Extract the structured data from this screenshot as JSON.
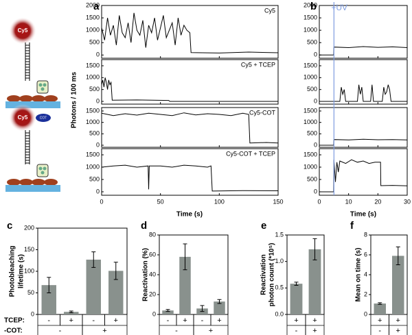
{
  "diagram": {
    "labels": [
      "Cy5",
      "Cy5",
      "COT"
    ]
  },
  "chart_data": [
    {
      "type": "trace",
      "panel_label": "a",
      "x_label": "Time (s)",
      "y_label": "Photons / 100 ms",
      "xlim": [
        0,
        150
      ],
      "xticks": [
        0,
        50,
        100,
        150
      ],
      "series": [
        {
          "name": "Cy5",
          "color": "#000000",
          "ylim": [
            -130,
            2000
          ],
          "yticks": [
            0,
            500,
            1000,
            1500,
            2000
          ],
          "x": [
            0,
            2.5,
            5,
            7.5,
            10,
            12.5,
            15,
            17.5,
            20,
            22.5,
            25,
            27.5,
            30,
            32.5,
            35,
            37.5,
            40,
            42.5,
            45,
            47.5,
            50,
            52.5,
            55,
            57.5,
            60,
            62.5,
            65,
            67.5,
            70,
            72.5,
            75,
            76,
            100,
            125,
            150
          ],
          "values": [
            1100,
            600,
            1500,
            800,
            1200,
            400,
            1600,
            900,
            700,
            1300,
            500,
            1700,
            1000,
            800,
            1400,
            300,
            1200,
            900,
            1500,
            600,
            1100,
            1600,
            700,
            1000,
            1300,
            400,
            1500,
            800,
            1200,
            1000,
            900,
            100,
            80,
            120,
            90
          ]
        },
        {
          "name": "Cy5 + TCEP",
          "color": "#000000",
          "ylim": [
            -115,
            1760
          ],
          "yticks": [
            0,
            500,
            1000,
            1500
          ],
          "x": [
            0,
            1,
            2,
            3,
            4,
            5,
            6,
            7,
            8,
            9,
            30,
            57,
            58,
            100,
            150
          ],
          "values": [
            700,
            900,
            600,
            1000,
            800,
            500,
            900,
            700,
            800,
            50,
            60,
            40,
            0,
            0,
            0
          ]
        },
        {
          "name": "Cy5-COT",
          "color": "#000000",
          "ylim": [
            -90,
            1650
          ],
          "yticks": [
            0,
            500,
            1000,
            1500
          ],
          "x": [
            0,
            10,
            20,
            30,
            40,
            50,
            60,
            70,
            80,
            90,
            100,
            110,
            120,
            125,
            126,
            140,
            150
          ],
          "values": [
            1400,
            1300,
            1380,
            1320,
            1400,
            1350,
            1300,
            1420,
            1330,
            1380,
            1350,
            1300,
            1400,
            1350,
            100,
            120,
            100
          ]
        },
        {
          "name": "Cy5-COT + TCEP",
          "color": "#000000",
          "ylim": [
            -140,
            1750
          ],
          "yticks": [
            0,
            500,
            1000,
            1500
          ],
          "x": [
            0,
            10,
            20,
            30,
            39.5,
            40,
            40.5,
            50,
            60,
            70,
            80,
            90,
            93,
            94,
            120,
            150
          ],
          "values": [
            1000,
            1050,
            1080,
            1000,
            1050,
            100,
            1050,
            1050,
            1000,
            1080,
            1050,
            1000,
            1050,
            30,
            50,
            40
          ]
        }
      ]
    },
    {
      "type": "trace",
      "panel_label": "b",
      "x_label": "Time (s)",
      "xlim": [
        0,
        30
      ],
      "xticks": [
        0,
        10,
        20,
        30
      ],
      "annotation": {
        "text": "+UV",
        "x": 5,
        "color": "#7d9be0"
      },
      "series": [
        {
          "color": "#000000",
          "ylim": [
            -130,
            2000
          ],
          "yticks": [
            0,
            500,
            1000,
            1500,
            2000
          ],
          "x": [
            0,
            4.9,
            5,
            10,
            15,
            20,
            25,
            30
          ],
          "values": [
            0,
            0,
            320,
            300,
            340,
            310,
            330,
            300
          ]
        },
        {
          "color": "#000000",
          "ylim": [
            -115,
            1760
          ],
          "yticks": [
            0,
            500,
            1000,
            1500
          ],
          "x": [
            0,
            5,
            7,
            7.5,
            8,
            8.5,
            9,
            13,
            13.5,
            14,
            14.5,
            15,
            17.5,
            18,
            18.5,
            21.5,
            22,
            22.5,
            23,
            23.5,
            24,
            24.5,
            30
          ],
          "values": [
            0,
            0,
            0,
            600,
            300,
            500,
            0,
            0,
            700,
            300,
            600,
            0,
            0,
            700,
            0,
            0,
            600,
            300,
            400,
            700,
            500,
            0,
            0
          ]
        },
        {
          "color": "#000000",
          "ylim": [
            -90,
            1650
          ],
          "yticks": [
            0,
            500,
            1000,
            1500
          ],
          "x": [
            0,
            4.9,
            5,
            10,
            15,
            20,
            25,
            30
          ],
          "values": [
            0,
            0,
            250,
            230,
            260,
            240,
            250,
            230
          ]
        },
        {
          "color": "#000000",
          "ylim": [
            -140,
            1750
          ],
          "yticks": [
            0,
            500,
            1000,
            1500
          ],
          "x": [
            0,
            4.9,
            5,
            5.5,
            6,
            6.5,
            7,
            9,
            11,
            13,
            15,
            17,
            19,
            20.9,
            21,
            25,
            30
          ],
          "values": [
            0,
            0,
            1300,
            400,
            1200,
            800,
            1250,
            1150,
            1300,
            1200,
            1250,
            1150,
            1200,
            1200,
            250,
            260,
            240
          ]
        }
      ]
    },
    {
      "type": "bar",
      "panel_label": "c",
      "y_label": [
        "Photobleaching",
        "lifetime (s)"
      ],
      "color": "#89918d",
      "categories": [
        "-",
        "+",
        "-",
        "+"
      ],
      "groups": [
        "-",
        "+"
      ],
      "row_labels": [
        "TCEP:",
        "-COT:"
      ],
      "values": [
        68,
        6,
        127,
        101
      ],
      "errors": [
        18,
        2,
        18,
        20
      ],
      "ylim": [
        0,
        200
      ],
      "yticks": [
        0,
        50,
        100,
        150,
        200
      ]
    },
    {
      "type": "bar",
      "panel_label": "d",
      "y_label": [
        "Reactivation (%)"
      ],
      "color": "#89918d",
      "categories": [
        "-",
        "+",
        "-",
        "+"
      ],
      "groups": [
        "-",
        "+"
      ],
      "values": [
        4,
        58,
        6,
        13
      ],
      "errors": [
        1,
        13,
        3,
        2
      ],
      "ylim": [
        0,
        80
      ],
      "yticks": [
        0,
        20,
        40,
        60,
        80
      ]
    },
    {
      "type": "bar",
      "panel_label": "e",
      "y_label": [
        "Reactivation",
        "photon count (*10⁵)"
      ],
      "color": "#89918d",
      "categories": [
        "+",
        "+"
      ],
      "groups": [
        "-",
        "+"
      ],
      "values": [
        0.58,
        1.23
      ],
      "errors": [
        0.03,
        0.2
      ],
      "ylim": [
        0,
        1.5
      ],
      "yticks": [
        {
          "value": 0,
          "label": "0.0"
        },
        {
          "value": 0.5,
          "label": "0.5"
        },
        {
          "value": 1,
          "label": "1.0"
        },
        {
          "value": 1.5,
          "label": "1.5"
        }
      ]
    },
    {
      "type": "bar",
      "panel_label": "f",
      "y_label": [
        "Mean on time (s)"
      ],
      "color": "#89918d",
      "categories": [
        "+",
        "+"
      ],
      "groups": [
        "-",
        "+"
      ],
      "values": [
        1.1,
        5.9
      ],
      "errors": [
        0.08,
        0.9
      ],
      "ylim": [
        0,
        8
      ],
      "yticks": [
        0,
        2,
        4,
        6,
        8
      ]
    }
  ]
}
